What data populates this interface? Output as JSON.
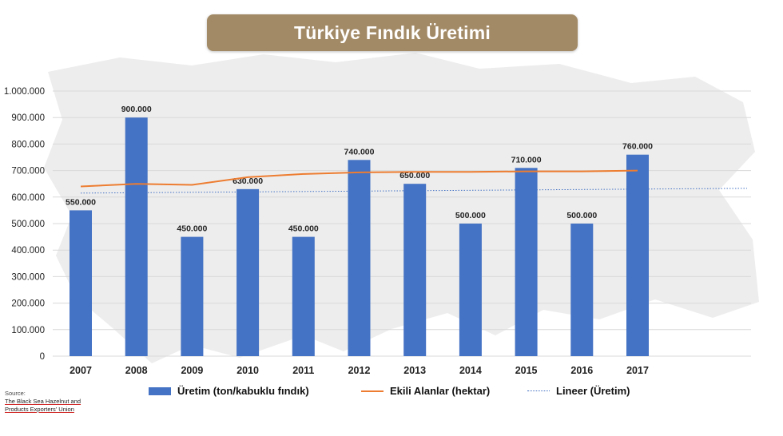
{
  "title": "Türkiye Fındık Üretimi",
  "colors": {
    "title_bg": "#A38A66",
    "bar": "#4472C4",
    "line": "#ED7D31",
    "trend": "#4472C4",
    "grid": "#D9D9D9",
    "map": "#EDEDED"
  },
  "source": {
    "label": "Source:",
    "line1": "The Black Sea Hazelnut and",
    "line2": "Products Exporters' Union"
  },
  "chart_data": {
    "type": "bar",
    "categories": [
      "2007",
      "2008",
      "2009",
      "2010",
      "2011",
      "2012",
      "2013",
      "2014",
      "2015",
      "2016",
      "2017"
    ],
    "ylim": [
      0,
      1000000
    ],
    "yticks": [
      0,
      100000,
      200000,
      300000,
      400000,
      500000,
      600000,
      700000,
      800000,
      900000,
      1000000
    ],
    "ytick_labels": [
      "0",
      "100.000",
      "200.000",
      "300.000",
      "400.000",
      "500.000",
      "600.000",
      "700.000",
      "800.000",
      "900.000",
      "1.000.000"
    ],
    "grid": true,
    "legend_position": "bottom",
    "series": [
      {
        "name": "Üretim (ton/kabuklu fındık)",
        "type": "bar",
        "values": [
          550000,
          900000,
          450000,
          630000,
          450000,
          740000,
          650000,
          500000,
          710000,
          500000,
          760000
        ],
        "labels": [
          "550.000",
          "900.000",
          "450.000",
          "630.000",
          "450.000",
          "740.000",
          "650.000",
          "500.000",
          "710.000",
          "500.000",
          "760.000"
        ]
      },
      {
        "name": "Ekili Alanlar (hektar)",
        "type": "line",
        "values": [
          640000,
          650000,
          646000,
          675000,
          687000,
          693000,
          695000,
          695000,
          697000,
          697000,
          700000
        ]
      },
      {
        "name": "Lineer (Üretim)",
        "type": "trendline",
        "start": 615000,
        "end": 633000
      }
    ]
  }
}
